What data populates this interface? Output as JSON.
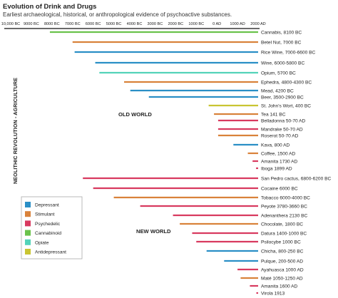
{
  "chart_data": {
    "type": "bar",
    "title": "Evolution of Drink and Drugs",
    "subtitle": "Earliest archaeological, historical, or anthropological evidence of psychoactive substances.",
    "ylabel": "NEOLITHIC REVOLUTION - AGRICULTURE",
    "x_tick_labels": [
      "10,000 BC",
      "9000 BC",
      "8000 BC",
      "7000 BC",
      "6000 BC",
      "5000 BC",
      "4000 BC",
      "3000 BC",
      "2000 BC",
      "1000 BC",
      "0 AD",
      "1000 AD",
      "2000 AD"
    ],
    "x_tick_values": [
      -10000,
      -9000,
      -8000,
      -7000,
      -6000,
      -5000,
      -4000,
      -3000,
      -2000,
      -1000,
      0,
      1000,
      2000
    ],
    "xlim": [
      -10000,
      2000
    ],
    "x_end": 2000,
    "sections": [
      "OLD WORLD",
      "NEW WORLD"
    ],
    "legend": [
      {
        "name": "Depressant",
        "color": "#2a8fc6"
      },
      {
        "name": "Stimulant",
        "color": "#d9823a"
      },
      {
        "name": "Psychedelic",
        "color": "#d83a5f"
      },
      {
        "name": "Cannabinoid",
        "color": "#6ac24b"
      },
      {
        "name": "Opiate",
        "color": "#53d3b9"
      },
      {
        "name": "Antidepressant",
        "color": "#c9c532"
      }
    ],
    "bars": [
      {
        "label": "Cannabis, 8100 BC",
        "start": -8100,
        "category": "Cannabinoid"
      },
      {
        "label": "Betel Nut, 7000 BC",
        "start": -7000,
        "category": "Stimulant"
      },
      {
        "label": "Rice Wine, 7000-6600 BC",
        "start": -6900,
        "category": "Depressant"
      },
      {
        "label": "Wine, 6000-5800 BC",
        "start": -5900,
        "category": "Depressant"
      },
      {
        "label": "Opium, 5700 BC",
        "start": -5700,
        "category": "Opiate"
      },
      {
        "label": "Ephedra, 4800-4300 BC",
        "start": -4500,
        "category": "Stimulant"
      },
      {
        "label": "Mead, 4200 BC",
        "start": -4200,
        "category": "Depressant"
      },
      {
        "label": "Beer, 3500-2900 BC",
        "start": -3300,
        "category": "Depressant"
      },
      {
        "label": "St. John's Wort, 400 BC",
        "start": -400,
        "category": "Antidepressant"
      },
      {
        "label": "Tea 141 BC",
        "start": -141,
        "category": "Stimulant"
      },
      {
        "label": "Belladonna 50-70 AD",
        "start": 60,
        "category": "Psychedelic"
      },
      {
        "label": "Mandrake 50-70 AD",
        "start": 60,
        "category": "Psychedelic"
      },
      {
        "label": "Roserot 50-70 AD",
        "start": 60,
        "category": "Stimulant"
      },
      {
        "label": "Kava, 800 AD",
        "start": 800,
        "category": "Depressant"
      },
      {
        "label": "Coffee, 1500 AD",
        "start": 1500,
        "category": "Stimulant"
      },
      {
        "label": "Amanita 1730 AD",
        "start": 1730,
        "category": "Psychedelic"
      },
      {
        "label": "Iboga 1899 AD",
        "start": 1899,
        "category": "Psychedelic"
      },
      {
        "label": "San Pedro cactus, 6800-6200 BC",
        "start": -6500,
        "category": "Psychedelic"
      },
      {
        "label": "Cocaine 6000 BC",
        "start": -6000,
        "category": "Psychedelic"
      },
      {
        "label": "Tobacco 6000-4000 BC",
        "start": -5000,
        "category": "Stimulant"
      },
      {
        "label": "Peyote 3780-3660 BC",
        "start": -3720,
        "category": "Psychedelic"
      },
      {
        "label": "Adenanthera 2130 BC",
        "start": -2130,
        "category": "Psychedelic"
      },
      {
        "label": "Chocolate, 1800 BC",
        "start": -1800,
        "category": "Stimulant"
      },
      {
        "label": "Datura 1400-1000 BC",
        "start": -1200,
        "category": "Psychedelic"
      },
      {
        "label": "Psilocybe 1000 BC",
        "start": -1000,
        "category": "Psychedelic"
      },
      {
        "label": "Chicha, 800-250 BC",
        "start": -500,
        "category": "Depressant"
      },
      {
        "label": "Pulque, 200-500 AD",
        "start": 350,
        "category": "Depressant"
      },
      {
        "label": "Ayahuasca 1000 AD",
        "start": 1000,
        "category": "Psychedelic"
      },
      {
        "label": "Maté 1050-1250 AD",
        "start": 1150,
        "category": "Stimulant"
      },
      {
        "label": "Amanita 1600 AD",
        "start": 1600,
        "category": "Psychedelic"
      },
      {
        "label": "Virola 1913",
        "start": 1913,
        "category": "Psychedelic"
      }
    ]
  }
}
